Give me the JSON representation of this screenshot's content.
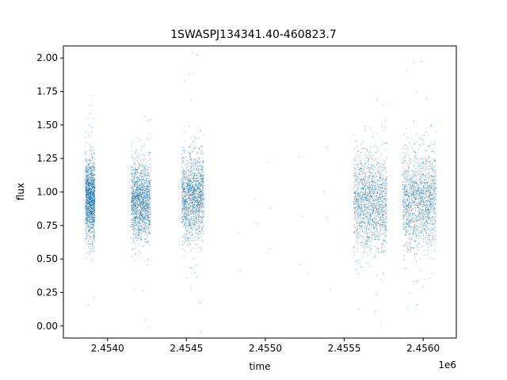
{
  "chart_data": {
    "type": "scatter",
    "title": "1SWASPJ134341.40-460823.7",
    "xlabel": "time",
    "ylabel": "flux",
    "x_offset_label": "1e6",
    "xlim": [
      2.45372,
      2.45621
    ],
    "ylim": [
      -0.09,
      2.09
    ],
    "x_ticks": [
      2.454,
      2.4545,
      2.455,
      2.4555,
      2.456
    ],
    "x_tick_labels": [
      "2.4540",
      "2.4545",
      "2.4550",
      "2.4555",
      "2.4560"
    ],
    "y_ticks": [
      0.0,
      0.25,
      0.5,
      0.75,
      1.0,
      1.25,
      1.5,
      1.75,
      2.0
    ],
    "y_tick_labels": [
      "0.00",
      "0.25",
      "0.50",
      "0.75",
      "1.00",
      "1.25",
      "1.50",
      "1.75",
      "2.00"
    ],
    "grid": false,
    "marker_color": "#1f77b4",
    "series": [
      {
        "clusters": [
          {
            "x_range": [
              2.45386,
              2.45392
            ],
            "center": 0.95,
            "spread": 0.14,
            "density": "high"
          },
          {
            "x_range": [
              2.45415,
              2.45427
            ],
            "center": 0.93,
            "spread": 0.14,
            "density": "high"
          },
          {
            "x_range": [
              2.45447,
              2.45461
            ],
            "center": 0.96,
            "spread": 0.15,
            "density": "high"
          },
          {
            "x_range": [
              2.45556,
              2.45577
            ],
            "center": 0.92,
            "spread": 0.17,
            "density": "high"
          },
          {
            "x_range": [
              2.45587,
              2.45608
            ],
            "center": 0.93,
            "spread": 0.17,
            "density": "high"
          }
        ],
        "sparse_points": [
          {
            "x": 2.45483,
            "y": 0.69
          },
          {
            "x": 2.45484,
            "y": 0.41
          },
          {
            "x": 2.45493,
            "y": 0.95
          },
          {
            "x": 2.45495,
            "y": 0.77
          },
          {
            "x": 2.45502,
            "y": 1.22
          },
          {
            "x": 2.45503,
            "y": 0.88
          },
          {
            "x": 2.45503,
            "y": 0.58
          },
          {
            "x": 2.45521,
            "y": 1.26
          },
          {
            "x": 2.45522,
            "y": 0.46
          },
          {
            "x": 2.45523,
            "y": 0.82
          },
          {
            "x": 2.45527,
            "y": 0.4
          },
          {
            "x": 2.45537,
            "y": 1.0
          },
          {
            "x": 2.45539,
            "y": 1.33
          },
          {
            "x": 2.45539,
            "y": 0.81
          },
          {
            "x": 2.45541,
            "y": 0.27
          }
        ]
      }
    ]
  }
}
